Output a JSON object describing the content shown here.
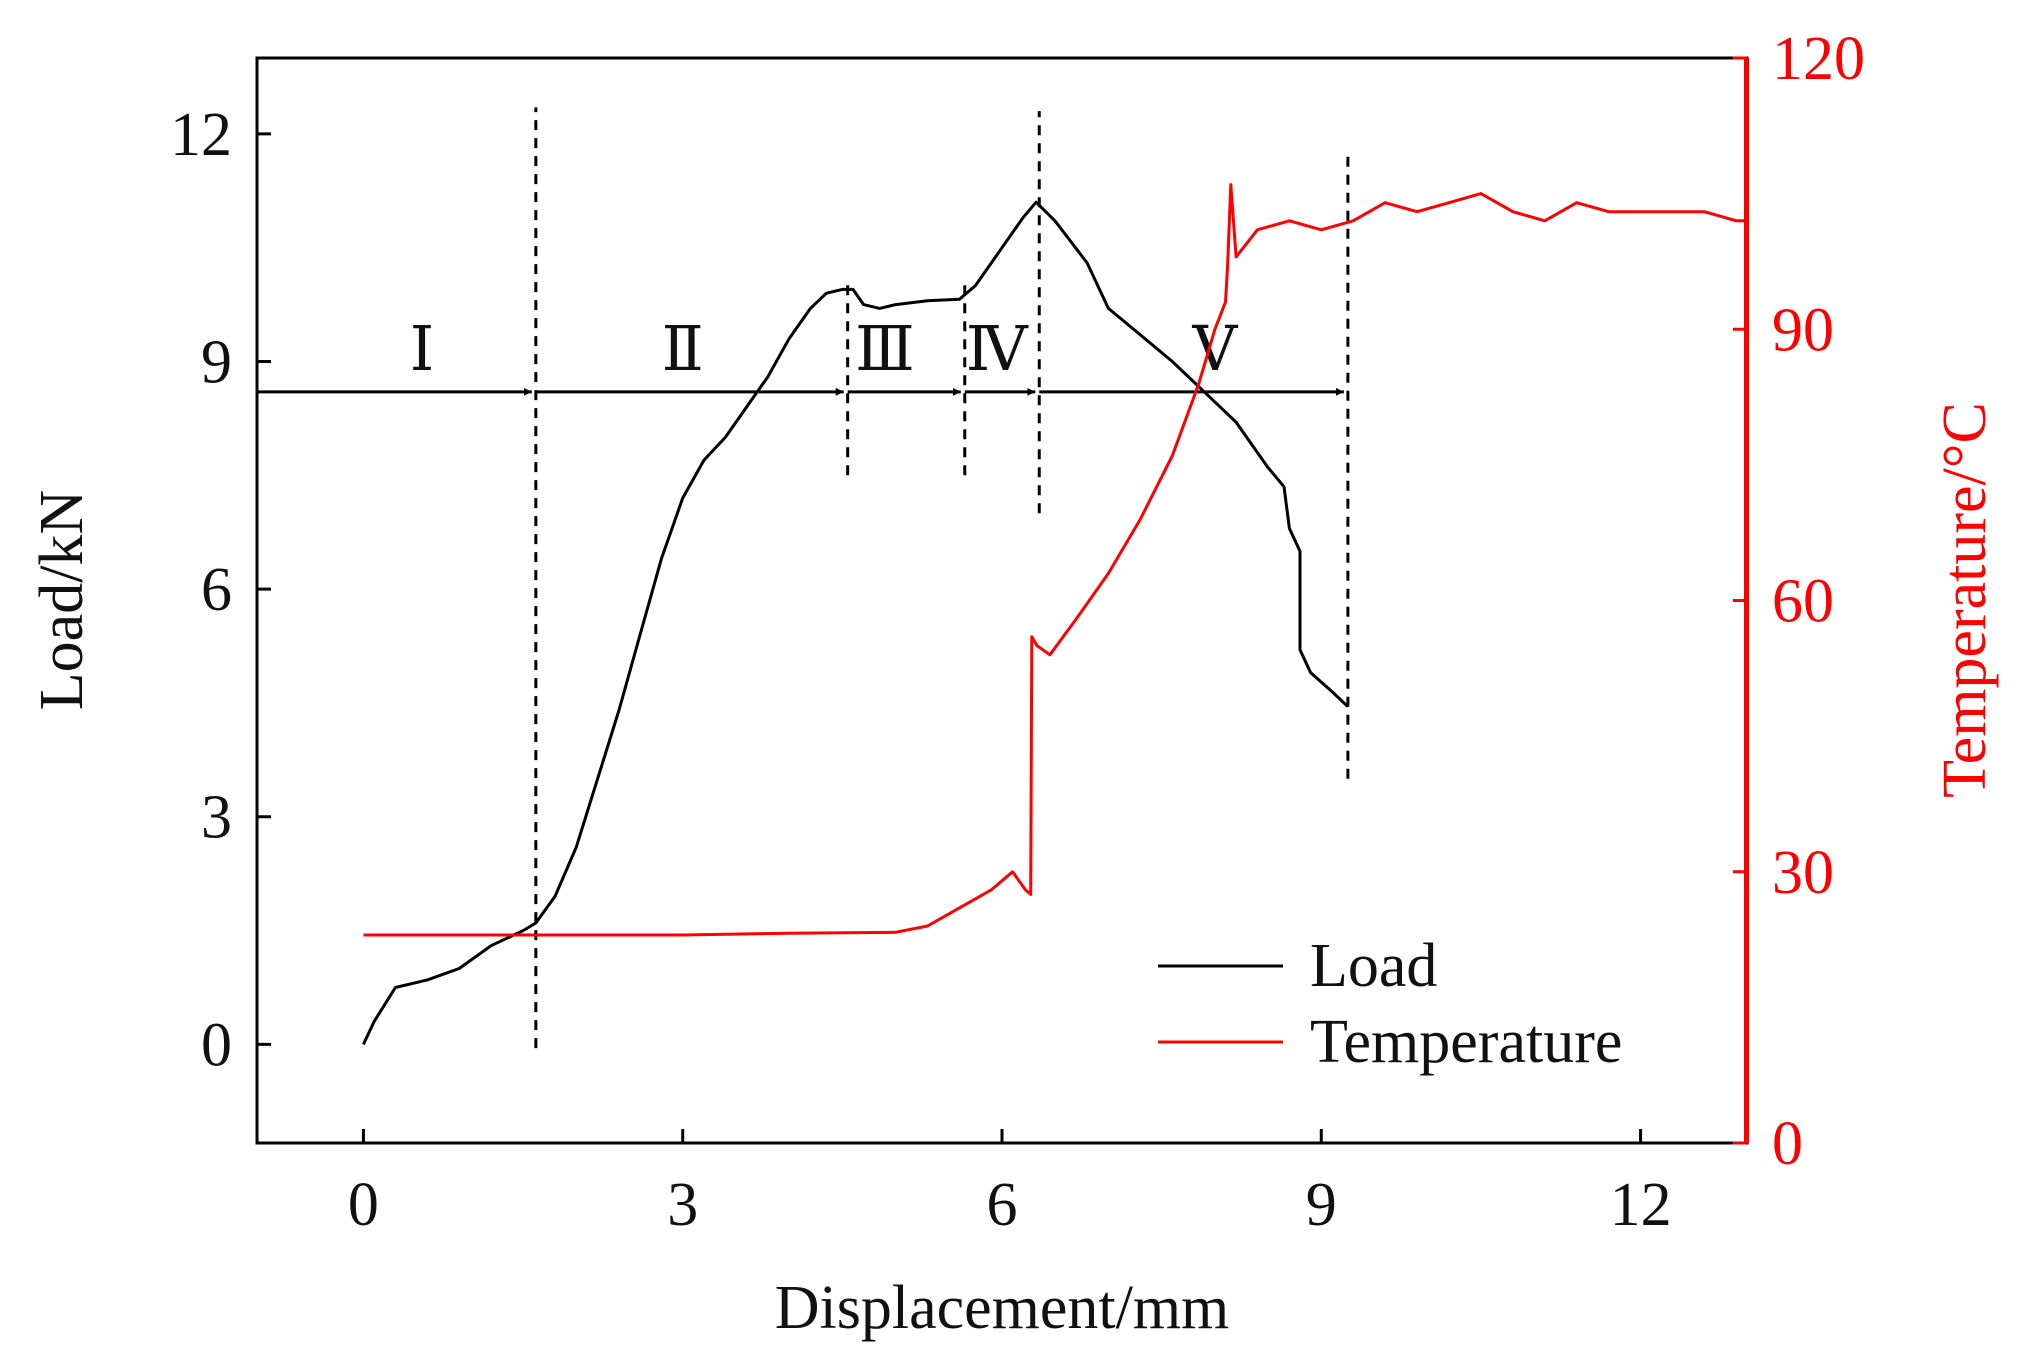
{
  "chart_data": {
    "type": "line",
    "title": "",
    "xlabel": "Displacement/mm",
    "ylabel_left": "Load/kN",
    "ylabel_right": "Temperature/°C",
    "xlim": [
      -1,
      13
    ],
    "ylim_left": [
      -1.3,
      13.0
    ],
    "ylim_right": [
      0,
      120
    ],
    "x_ticks": [
      0,
      3,
      6,
      9,
      12
    ],
    "y_ticks_left": [
      0,
      3,
      6,
      9,
      12
    ],
    "y_ticks_right": [
      0,
      30,
      60,
      90,
      120
    ],
    "grid": false,
    "legend_position": "bottom-right",
    "colors": {
      "load": "#000000",
      "temperature": "#ff0000",
      "axis": "#000000"
    },
    "series": [
      {
        "name": "Load",
        "axis": "left",
        "x": [
          0,
          0.1,
          0.3,
          0.6,
          0.9,
          1.2,
          1.5,
          1.62,
          1.8,
          2.0,
          2.2,
          2.4,
          2.6,
          2.8,
          3.0,
          3.2,
          3.4,
          3.6,
          3.8,
          4.0,
          4.2,
          4.35,
          4.5,
          4.6,
          4.7,
          4.85,
          5.0,
          5.3,
          5.6,
          5.75,
          6.0,
          6.2,
          6.32,
          6.5,
          6.8,
          7.0,
          7.3,
          7.6,
          7.9,
          8.2,
          8.5,
          8.65,
          8.7,
          8.8,
          8.8,
          8.9,
          9.1,
          9.25
        ],
        "y": [
          0,
          0.3,
          0.75,
          0.85,
          1.0,
          1.3,
          1.5,
          1.6,
          1.95,
          2.6,
          3.5,
          4.4,
          5.4,
          6.4,
          7.2,
          7.7,
          8.0,
          8.4,
          8.8,
          9.3,
          9.7,
          9.9,
          9.95,
          9.95,
          9.75,
          9.7,
          9.75,
          9.8,
          9.82,
          10.0,
          10.5,
          10.9,
          11.1,
          10.85,
          10.3,
          9.7,
          9.35,
          9.0,
          8.6,
          8.2,
          7.6,
          7.35,
          6.8,
          6.5,
          5.2,
          4.9,
          4.65,
          4.45
        ]
      },
      {
        "name": "Temperature",
        "axis": "right",
        "x": [
          0,
          1.0,
          2.0,
          3.0,
          4.0,
          5.0,
          5.3,
          5.6,
          5.9,
          6.1,
          6.22,
          6.27,
          6.28,
          6.33,
          6.45,
          6.7,
          7.0,
          7.3,
          7.6,
          7.85,
          8.0,
          8.1,
          8.12,
          8.15,
          8.2,
          8.4,
          8.7,
          9.0,
          9.3,
          9.6,
          9.9,
          10.2,
          10.5,
          10.8,
          11.1,
          11.4,
          11.7,
          12.0,
          12.3,
          12.6,
          12.9,
          13.0
        ],
        "y": [
          23,
          23,
          23,
          23,
          23.2,
          23.3,
          24,
          26,
          28,
          30,
          28,
          27.5,
          56,
          55,
          54,
          58,
          63,
          69,
          76,
          84,
          90,
          93,
          97,
          106,
          98,
          101,
          102,
          101,
          102,
          104,
          103,
          104,
          105,
          103,
          102,
          104,
          103,
          103,
          103,
          103,
          102,
          102
        ]
      }
    ],
    "stage_markers": {
      "boundaries": [
        1.62,
        4.55,
        5.65,
        6.35,
        9.25
      ],
      "arrow_load_level": 8.6,
      "labels": [
        {
          "text": "Ⅰ",
          "x": 0.55
        },
        {
          "text": "Ⅱ",
          "x": 3.0
        },
        {
          "text": "Ⅲ",
          "x": 4.9
        },
        {
          "text": "Ⅳ",
          "x": 5.95
        },
        {
          "text": "Ⅴ",
          "x": 8.0
        }
      ]
    }
  }
}
